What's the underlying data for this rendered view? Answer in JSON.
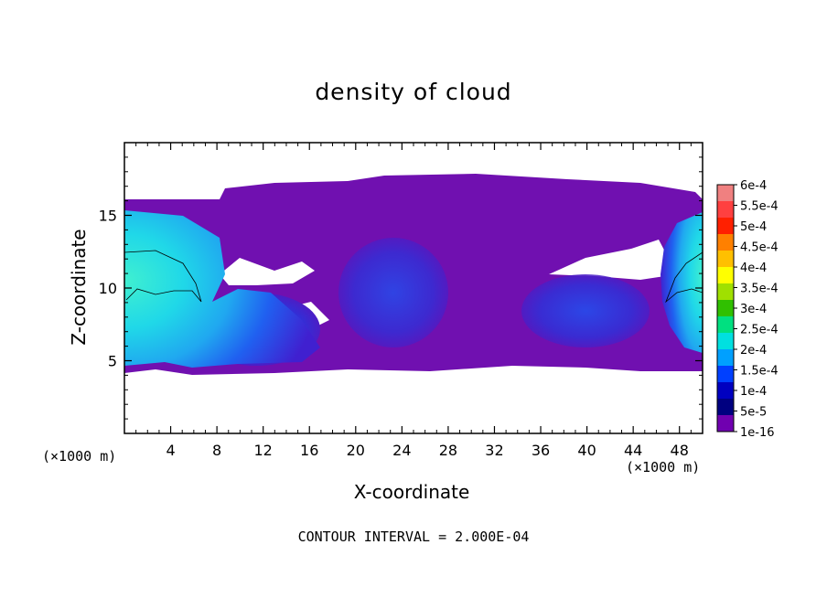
{
  "chart_data": {
    "type": "heatmap",
    "title": "density of cloud",
    "xlabel": "X-coordinate",
    "ylabel": "Z-coordinate",
    "x_unit": "(×1000 m)",
    "z_unit": "(×1000 m)",
    "footer": "CONTOUR INTERVAL = 2.000E-04",
    "xlim": [
      0,
      50
    ],
    "ylim": [
      0,
      20
    ],
    "x_ticks": [
      4,
      8,
      12,
      16,
      20,
      24,
      28,
      32,
      36,
      40,
      44,
      48
    ],
    "y_ticks": [
      5,
      10,
      15
    ],
    "colorbar": {
      "labels": [
        "6e-4",
        "5.5e-4",
        "5e-4",
        "4.5e-4",
        "4e-4",
        "3.5e-4",
        "3e-4",
        "2.5e-4",
        "2e-4",
        "1.5e-4",
        "1e-4",
        "5e-5",
        "1e-16"
      ],
      "colors": [
        "#f08080",
        "#ff4040",
        "#ff2000",
        "#ff8000",
        "#ffc000",
        "#ffff00",
        "#a0e000",
        "#30c000",
        "#00e080",
        "#00e0e0",
        "#00a0ff",
        "#0040ff",
        "#0000c0",
        "#000080",
        "#7000b0"
      ]
    },
    "cloud_layer_z_range": [
      4.3,
      17.2
    ]
  }
}
